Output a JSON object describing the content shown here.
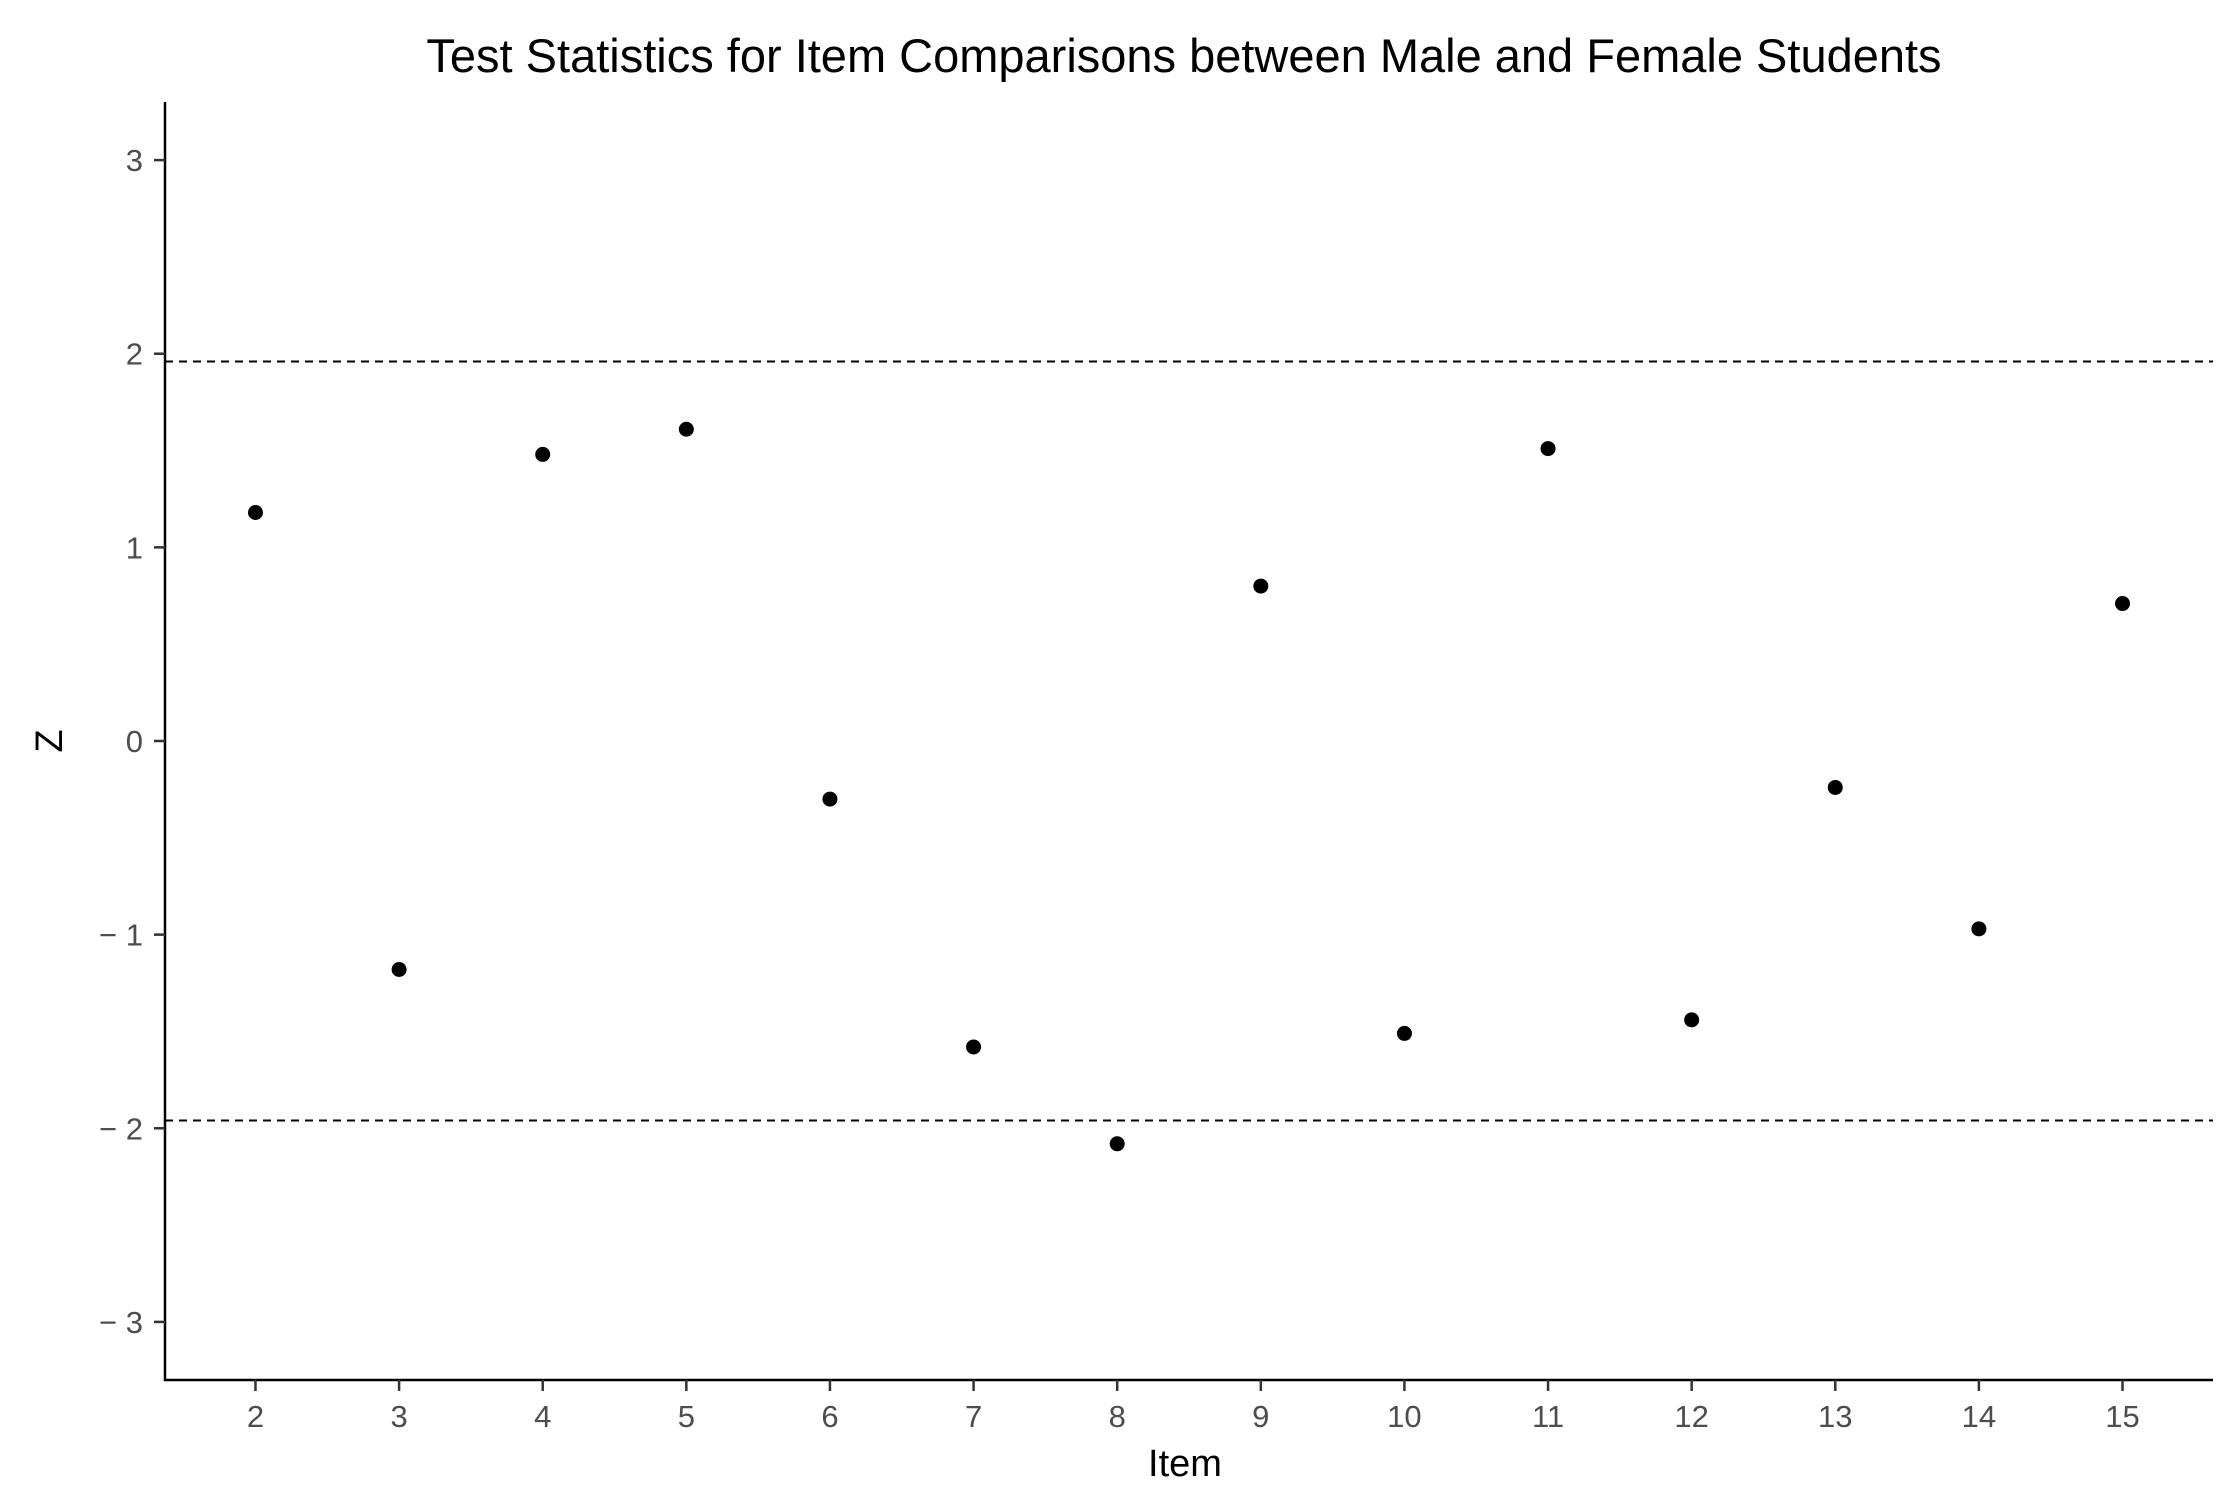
{
  "chart_data": {
    "type": "scatter",
    "title": "Test Statistics for Item Comparisons between Male and Female Students",
    "xlabel": "Item",
    "ylabel": "Z",
    "x": [
      2,
      3,
      4,
      5,
      6,
      7,
      8,
      9,
      10,
      11,
      12,
      13,
      14,
      15
    ],
    "y": [
      1.18,
      -1.18,
      1.48,
      1.61,
      -0.3,
      -1.58,
      -2.08,
      0.8,
      -1.51,
      1.51,
      -1.44,
      -0.24,
      -0.97,
      0.71
    ],
    "x_ticks": [
      2,
      3,
      4,
      5,
      6,
      7,
      8,
      9,
      10,
      11,
      12,
      13,
      14,
      15
    ],
    "y_ticks": [
      3,
      2,
      1,
      0,
      -1,
      -2,
      -3
    ],
    "y_tick_labels": [
      "3",
      "2",
      "1",
      "0",
      "− 1",
      "− 2",
      "− 3"
    ],
    "xlim": [
      1.37,
      15.63
    ],
    "ylim": [
      -3.3,
      3.3
    ],
    "reference_lines": [
      1.96,
      -1.96
    ],
    "grid": false,
    "point_color": "#000000"
  }
}
